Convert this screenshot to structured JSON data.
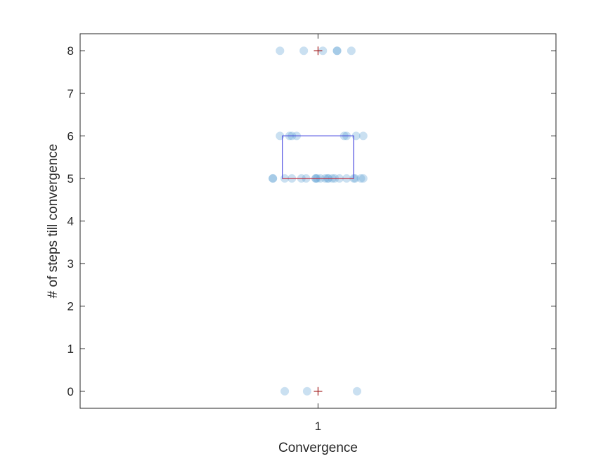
{
  "chart_data": {
    "type": "scatter",
    "subtype": "boxplot-with-jittered-points",
    "title": "",
    "xlabel": "Convergence",
    "ylabel": "# of steps till convergence",
    "categories": [
      "1"
    ],
    "xlim": [
      0.5,
      1.5
    ],
    "ylim": [
      -0.4,
      8.4
    ],
    "yticks": [
      0,
      1,
      2,
      3,
      4,
      5,
      6,
      7,
      8
    ],
    "grid": false,
    "box": {
      "q1": 5,
      "median": 5,
      "q3": 6,
      "whisker_low": 5,
      "whisker_high": 6,
      "box_color": "#4a4ae0",
      "median_color": "#d63030"
    },
    "outliers": [
      8,
      0
    ],
    "outlier_color": "#a01818",
    "point_color": "#5a9fd4",
    "points": [
      {
        "x": 0.92,
        "y": 8
      },
      {
        "x": 0.97,
        "y": 8
      },
      {
        "x": 1.01,
        "y": 8
      },
      {
        "x": 1.04,
        "y": 8
      },
      {
        "x": 1.04,
        "y": 8
      },
      {
        "x": 1.07,
        "y": 8
      },
      {
        "x": 0.92,
        "y": 6
      },
      {
        "x": 0.94,
        "y": 6
      },
      {
        "x": 0.945,
        "y": 6
      },
      {
        "x": 0.955,
        "y": 6
      },
      {
        "x": 1.055,
        "y": 6
      },
      {
        "x": 1.06,
        "y": 6
      },
      {
        "x": 1.08,
        "y": 6
      },
      {
        "x": 1.095,
        "y": 6
      },
      {
        "x": 0.905,
        "y": 5
      },
      {
        "x": 0.905,
        "y": 5
      },
      {
        "x": 0.93,
        "y": 5
      },
      {
        "x": 0.945,
        "y": 5
      },
      {
        "x": 0.965,
        "y": 5
      },
      {
        "x": 0.975,
        "y": 5
      },
      {
        "x": 0.995,
        "y": 5
      },
      {
        "x": 0.995,
        "y": 5
      },
      {
        "x": 0.998,
        "y": 5
      },
      {
        "x": 1.005,
        "y": 5
      },
      {
        "x": 1.015,
        "y": 5
      },
      {
        "x": 1.02,
        "y": 5
      },
      {
        "x": 1.022,
        "y": 5
      },
      {
        "x": 1.03,
        "y": 5
      },
      {
        "x": 1.035,
        "y": 5
      },
      {
        "x": 1.045,
        "y": 5
      },
      {
        "x": 1.06,
        "y": 5
      },
      {
        "x": 1.075,
        "y": 5
      },
      {
        "x": 1.078,
        "y": 5
      },
      {
        "x": 1.09,
        "y": 5
      },
      {
        "x": 1.095,
        "y": 5
      },
      {
        "x": 0.93,
        "y": 0
      },
      {
        "x": 0.977,
        "y": 0
      },
      {
        "x": 1.082,
        "y": 0
      }
    ]
  }
}
